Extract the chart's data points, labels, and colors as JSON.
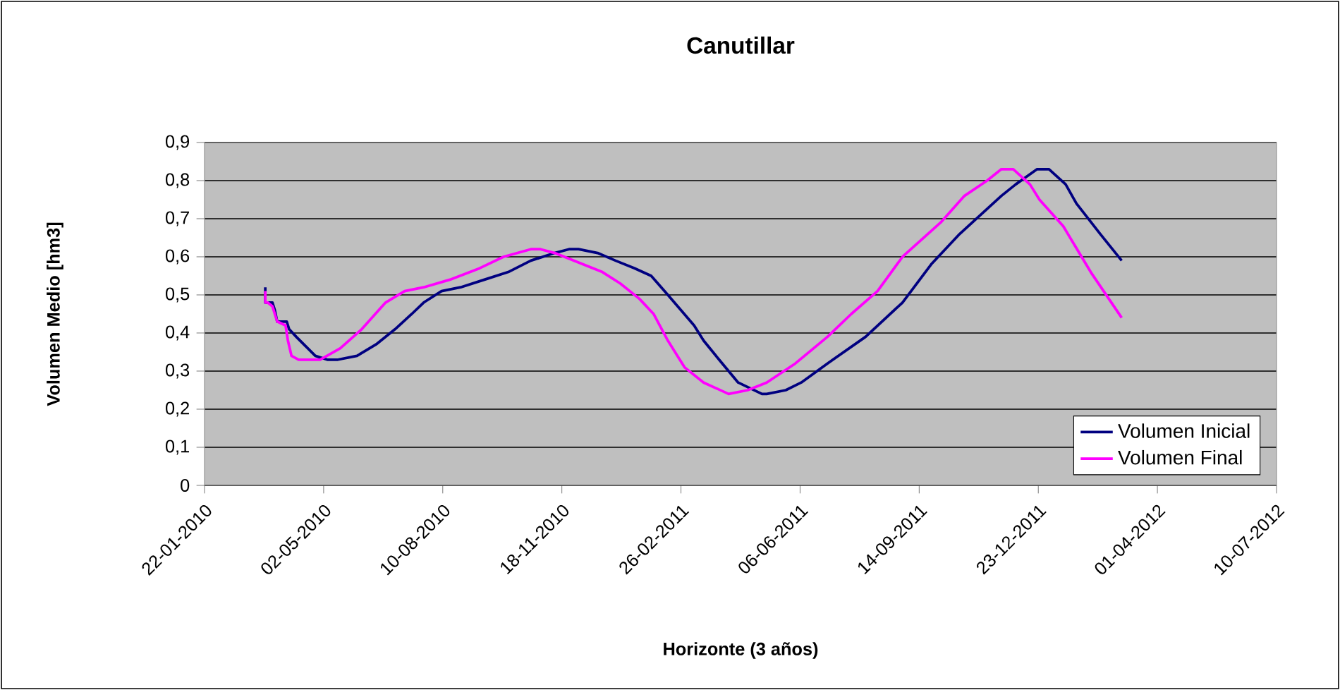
{
  "chart_data": {
    "type": "line",
    "title": "Canutillar",
    "xlabel": "Horizonte (3 años)",
    "ylabel": "Volumen Medio [hm3]",
    "xlim": [
      "2010-01-22",
      "2012-07-10"
    ],
    "xticks": [
      {
        "value": "2010-01-22",
        "label": "22-01-2010"
      },
      {
        "value": "2010-05-02",
        "label": "02-05-2010"
      },
      {
        "value": "2010-08-10",
        "label": "10-08-2010"
      },
      {
        "value": "2010-11-18",
        "label": "18-11-2010"
      },
      {
        "value": "2011-02-26",
        "label": "26-02-2011"
      },
      {
        "value": "2011-06-06",
        "label": "06-06-2011"
      },
      {
        "value": "2011-09-14",
        "label": "14-09-2011"
      },
      {
        "value": "2011-12-23",
        "label": "23-12-2011"
      },
      {
        "value": "2012-04-01",
        "label": "01-04-2012"
      },
      {
        "value": "2012-07-10",
        "label": "10-07-2012"
      }
    ],
    "ylim": [
      0,
      0.9
    ],
    "yticks": [
      0,
      {
        "value": 0.1,
        "label": "0,1"
      },
      {
        "value": 0.2,
        "label": "0,2"
      },
      {
        "value": 0.3,
        "label": "0,3"
      },
      {
        "value": 0.4,
        "label": "0,4"
      },
      {
        "value": 0.5,
        "label": "0,5"
      },
      {
        "value": 0.6,
        "label": "0,6"
      },
      {
        "value": 0.7,
        "label": "0,7"
      },
      {
        "value": 0.8,
        "label": "0,8"
      },
      {
        "value": 0.9,
        "label": "0,9"
      }
    ],
    "grid": "y",
    "legend": "bottom right",
    "series": [
      {
        "name": "Volumen Inicial",
        "color": "#000080",
        "x": [
          "2010-03-14",
          "2010-03-14",
          "2010-03-20",
          "2010-03-22",
          "2010-03-24",
          "2010-04-01",
          "2010-04-03",
          "2010-04-09",
          "2010-04-25",
          "2010-05-05",
          "2010-05-14",
          "2010-05-30",
          "2010-06-15",
          "2010-07-01",
          "2010-07-15",
          "2010-07-25",
          "2010-08-09",
          "2010-08-25",
          "2010-09-14",
          "2010-10-04",
          "2010-10-23",
          "2010-11-12",
          "2010-11-24",
          "2010-12-02",
          "2010-12-18",
          "2011-01-02",
          "2011-01-18",
          "2011-02-01",
          "2011-02-15",
          "2011-03-09",
          "2011-03-17",
          "2011-03-30",
          "2011-04-15",
          "2011-05-05",
          "2011-05-09",
          "2011-05-25",
          "2011-06-07",
          "2011-06-29",
          "2011-07-31",
          "2011-08-31",
          "2011-09-24",
          "2011-10-18",
          "2011-11-22",
          "2011-12-04",
          "2011-12-22",
          "2012-01-01",
          "2012-01-15",
          "2012-01-24",
          "2012-02-13",
          "2012-03-02"
        ],
        "values": [
          0.52,
          0.48,
          0.48,
          0.46,
          0.43,
          0.43,
          0.41,
          0.39,
          0.34,
          0.33,
          0.33,
          0.34,
          0.37,
          0.41,
          0.45,
          0.48,
          0.51,
          0.52,
          0.54,
          0.56,
          0.59,
          0.61,
          0.62,
          0.62,
          0.61,
          0.59,
          0.57,
          0.55,
          0.5,
          0.42,
          0.38,
          0.33,
          0.27,
          0.24,
          0.24,
          0.25,
          0.27,
          0.32,
          0.39,
          0.48,
          0.58,
          0.66,
          0.76,
          0.79,
          0.83,
          0.83,
          0.79,
          0.74,
          0.66,
          0.59
        ]
      },
      {
        "name": "Volumen Final",
        "color": "#ff00ff",
        "x": [
          "2010-03-14",
          "2010-03-14",
          "2010-03-16",
          "2010-03-20",
          "2010-03-24",
          "2010-03-31",
          "2010-04-02",
          "2010-04-05",
          "2010-04-11",
          "2010-04-17",
          "2010-04-29",
          "2010-05-16",
          "2010-06-03",
          "2010-06-23",
          "2010-07-09",
          "2010-07-25",
          "2010-08-16",
          "2010-09-10",
          "2010-09-30",
          "2010-10-23",
          "2010-10-31",
          "2010-11-12",
          "2010-12-06",
          "2010-12-22",
          "2011-01-06",
          "2011-01-22",
          "2011-02-03",
          "2011-02-15",
          "2011-03-01",
          "2011-03-17",
          "2011-04-07",
          "2011-04-23",
          "2011-05-09",
          "2011-06-02",
          "2011-06-29",
          "2011-07-19",
          "2011-08-10",
          "2011-08-31",
          "2011-10-02",
          "2011-10-22",
          "2011-11-10",
          "2011-11-22",
          "2011-12-02",
          "2011-12-16",
          "2011-12-24",
          "2012-01-13",
          "2012-02-05",
          "2012-03-02"
        ],
        "values": [
          0.51,
          0.48,
          0.48,
          0.47,
          0.43,
          0.42,
          0.38,
          0.34,
          0.33,
          0.33,
          0.33,
          0.36,
          0.41,
          0.48,
          0.51,
          0.52,
          0.54,
          0.57,
          0.6,
          0.62,
          0.62,
          0.61,
          0.58,
          0.56,
          0.53,
          0.49,
          0.45,
          0.38,
          0.31,
          0.27,
          0.24,
          0.25,
          0.27,
          0.32,
          0.39,
          0.45,
          0.51,
          0.6,
          0.69,
          0.76,
          0.8,
          0.83,
          0.83,
          0.79,
          0.75,
          0.68,
          0.56,
          0.44
        ]
      }
    ]
  }
}
